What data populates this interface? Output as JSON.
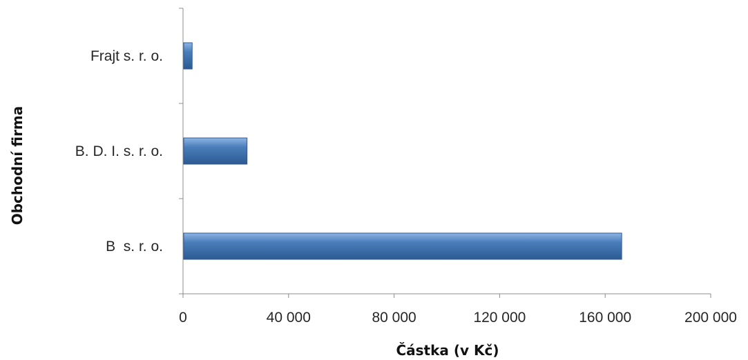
{
  "chart_data": {
    "type": "bar",
    "orientation": "horizontal",
    "categories": [
      "B  s. r. o.",
      "B. D. I. s. r. o.",
      "Frajt s. r. o."
    ],
    "series": [
      {
        "values": [
          166000,
          24000,
          3200
        ]
      }
    ],
    "xlabel": "Částka (v Kč)",
    "ylabel": "Obchodní firma",
    "xlim": [
      0,
      200000
    ],
    "x_ticks": [
      0,
      40000,
      80000,
      120000,
      160000,
      200000
    ],
    "x_tick_labels": [
      "0",
      "40 000",
      "80 000",
      "120 000",
      "160 000",
      "200 000"
    ],
    "grid": false,
    "legend": "none",
    "bar_color": "#4a7ebb",
    "bar_color_light": "#8fb4e3",
    "bar_color_dark": "#2c5a92"
  }
}
